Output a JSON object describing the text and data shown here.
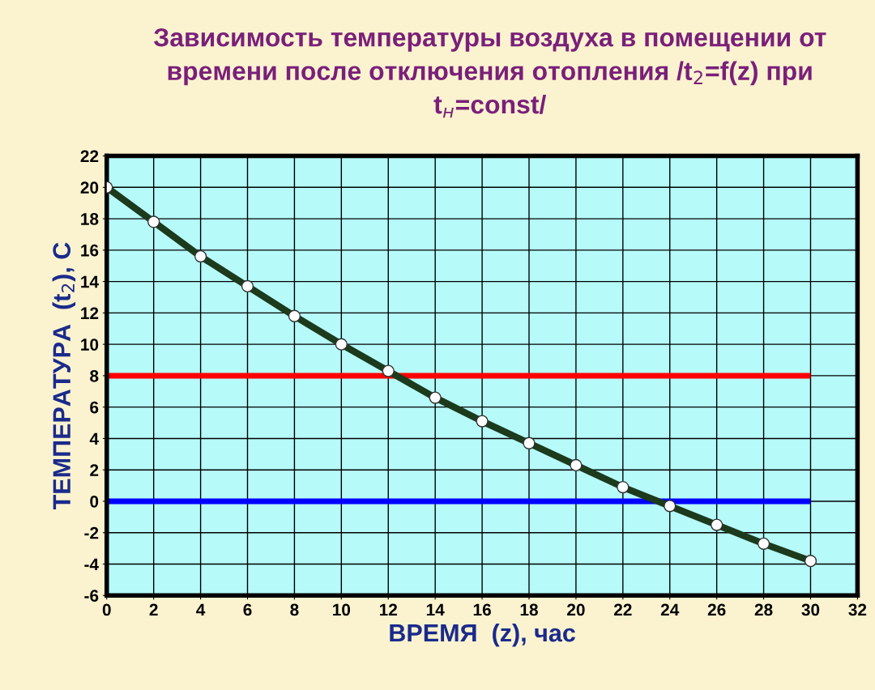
{
  "chart_data": {
    "type": "line",
    "title": "Зависимость температуры воздуха в помещении от времени после отключения отопления /t$_{2}$=f(z) при t$_{н}$=const/",
    "xlabel": "ВРЕМЯ  (z), час",
    "ylabel": "ТЕМПЕРАТУРА  (t$_{2}$), С",
    "x": [
      0,
      2,
      4,
      6,
      8,
      10,
      12,
      14,
      16,
      18,
      20,
      22,
      24,
      26,
      28,
      30
    ],
    "series": [
      {
        "type": "line",
        "color": "#1c3a1c",
        "marker": "circle",
        "values": [
          20,
          17.8,
          15.6,
          13.7,
          11.8,
          10.0,
          8.3,
          6.6,
          5.1,
          3.7,
          2.3,
          0.9,
          -0.3,
          -1.5,
          -2.7,
          -3.8
        ]
      }
    ],
    "ref_lines": [
      {
        "axis": "y",
        "value": 8,
        "color": "#ff0000"
      },
      {
        "axis": "y",
        "value": 0,
        "color": "#0000ff"
      }
    ],
    "xlim": [
      0,
      32
    ],
    "xticks": [
      0,
      2,
      4,
      6,
      8,
      10,
      12,
      14,
      16,
      18,
      20,
      22,
      24,
      26,
      28,
      30,
      32
    ],
    "ylim": [
      -6,
      22
    ],
    "yticks": [
      -6,
      -4,
      -2,
      0,
      2,
      4,
      6,
      8,
      10,
      12,
      14,
      16,
      18,
      20,
      22
    ],
    "grid": true
  }
}
